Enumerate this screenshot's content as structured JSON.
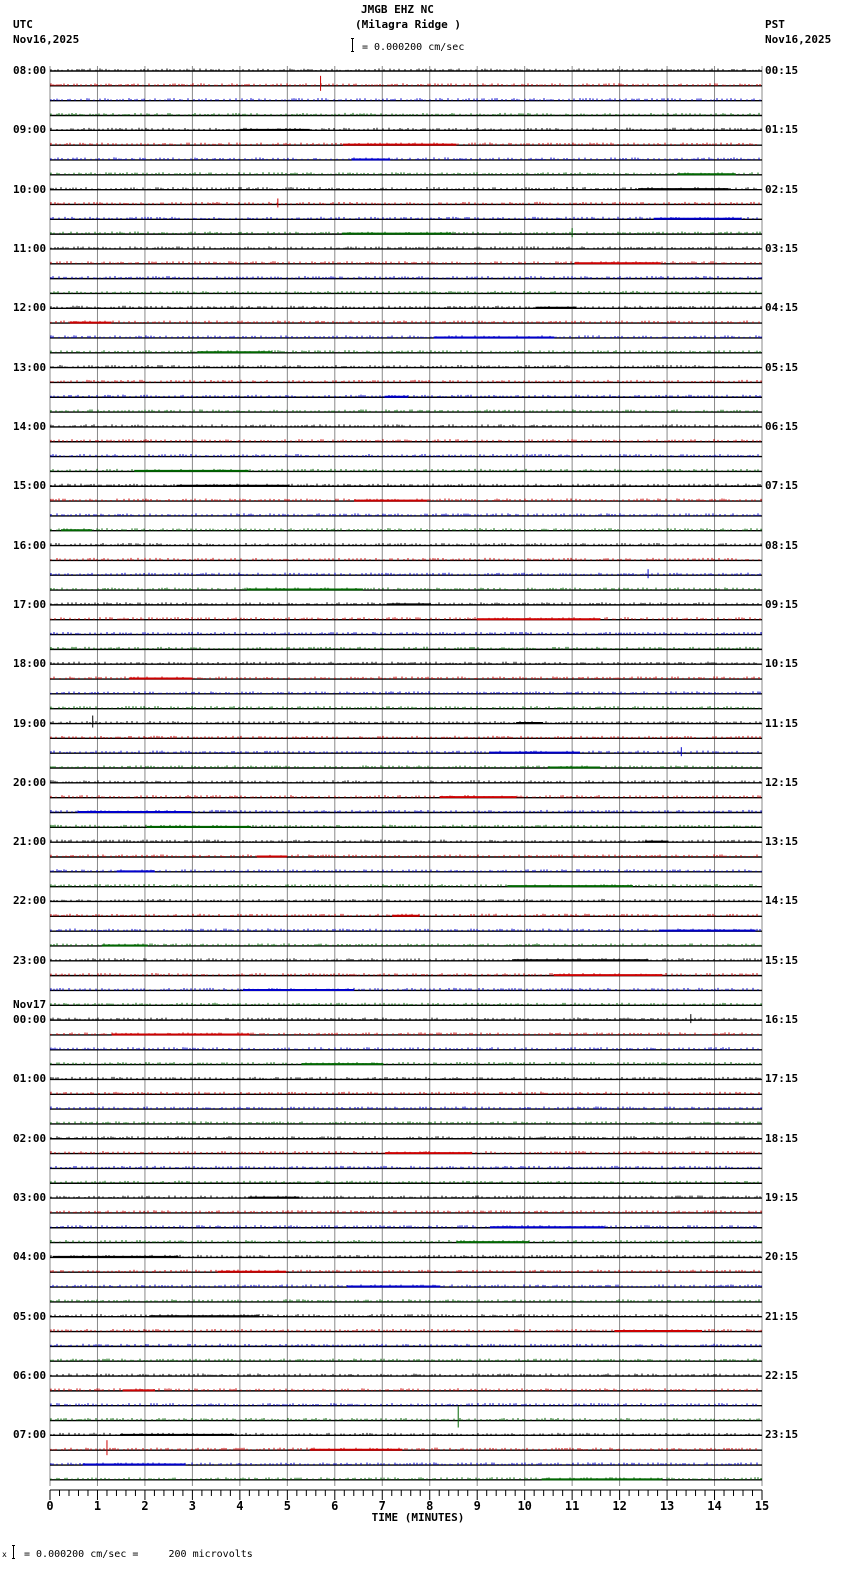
{
  "header": {
    "station": "JMGB EHZ NC",
    "location": "(Milagra Ridge )",
    "scale_text": "= 0.000200 cm/sec",
    "left_tz": "UTC",
    "left_date": "Nov16,2025",
    "right_tz": "PST",
    "right_date": "Nov16,2025"
  },
  "footer": {
    "scale_text": "= 0.000200 cm/sec =     200 microvolts",
    "scale_prefix": "x"
  },
  "chart_data": {
    "type": "line",
    "title": "JMGB EHZ NC (Milagra Ridge ) helicorder",
    "xlabel": "TIME (MINUTES)",
    "ylabel": "",
    "xlim": [
      0,
      15
    ],
    "x_ticks": [
      "0",
      "1",
      "2",
      "3",
      "4",
      "5",
      "6",
      "7",
      "8",
      "9",
      "10",
      "11",
      "12",
      "13",
      "14",
      "15"
    ],
    "minor_ticks_per_minute": 5,
    "grid": true,
    "traces_per_hour": 4,
    "trace_colors": [
      "#000000",
      "#cc0000",
      "#0000cc",
      "#006600"
    ],
    "left_labels": [
      "08:00",
      "09:00",
      "10:00",
      "11:00",
      "12:00",
      "13:00",
      "14:00",
      "15:00",
      "16:00",
      "17:00",
      "18:00",
      "19:00",
      "20:00",
      "21:00",
      "22:00",
      "23:00",
      "00:00",
      "01:00",
      "02:00",
      "03:00",
      "04:00",
      "05:00",
      "06:00",
      "07:00"
    ],
    "right_labels": [
      "00:15",
      "01:15",
      "02:15",
      "03:15",
      "04:15",
      "05:15",
      "06:15",
      "07:15",
      "08:15",
      "09:15",
      "10:15",
      "11:15",
      "12:15",
      "13:15",
      "14:15",
      "15:15",
      "16:15",
      "17:15",
      "18:15",
      "19:15",
      "20:15",
      "21:15",
      "22:15",
      "23:15"
    ],
    "date_change": {
      "hour_index": 16,
      "label": "Nov17"
    },
    "scale": "0.000200 cm/sec = 200 microvolts",
    "events": [
      {
        "row": 1,
        "minute": 5.7,
        "amp": 10
      },
      {
        "row": 9,
        "minute": 4.8,
        "amp": 6
      },
      {
        "row": 11,
        "minute": 11.0,
        "amp": 6
      },
      {
        "row": 34,
        "minute": 12.6,
        "amp": 6
      },
      {
        "row": 44,
        "minute": 0.9,
        "amp": 8
      },
      {
        "row": 46,
        "minute": 13.3,
        "amp": 6
      },
      {
        "row": 64,
        "minute": 13.5,
        "amp": 6
      },
      {
        "row": 91,
        "minute": 8.6,
        "amp": 14
      },
      {
        "row": 93,
        "minute": 1.2,
        "amp": 10
      }
    ]
  }
}
